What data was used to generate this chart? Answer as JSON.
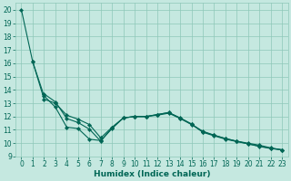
{
  "xlabel": "Humidex (Indice chaleur)",
  "ylabel": "",
  "bg_color": "#c5e8e0",
  "grid_color": "#8ec8b8",
  "line_color": "#006655",
  "xlim": [
    -0.5,
    23.5
  ],
  "ylim": [
    9,
    20.5
  ],
  "yticks": [
    9,
    10,
    11,
    12,
    13,
    14,
    15,
    16,
    17,
    18,
    19,
    20
  ],
  "xticks": [
    0,
    1,
    2,
    3,
    4,
    5,
    6,
    7,
    8,
    9,
    10,
    11,
    12,
    13,
    14,
    15,
    16,
    17,
    18,
    19,
    20,
    21,
    22,
    23
  ],
  "line1_x": [
    0,
    1,
    2,
    3,
    4,
    5,
    6,
    7,
    8,
    9,
    10,
    11,
    12,
    13,
    14,
    15,
    16,
    17,
    18,
    19,
    20,
    21,
    22,
    23
  ],
  "line1_y": [
    20.0,
    16.1,
    13.3,
    13.0,
    12.1,
    11.8,
    11.4,
    10.4,
    11.2,
    11.9,
    12.0,
    12.0,
    12.1,
    12.25,
    11.85,
    11.4,
    10.9,
    10.6,
    10.35,
    10.15,
    10.0,
    9.85,
    9.65,
    9.5
  ],
  "line2_x": [
    2,
    3,
    4,
    5,
    6,
    7,
    8,
    9,
    10,
    11,
    12,
    13,
    14,
    15,
    16,
    17,
    18,
    19,
    20,
    21,
    22,
    23
  ],
  "line2_y": [
    13.7,
    13.1,
    11.85,
    11.55,
    11.05,
    10.15,
    11.15,
    11.9,
    12.0,
    12.0,
    12.15,
    12.3,
    11.9,
    11.45,
    10.85,
    10.6,
    10.35,
    10.15,
    9.95,
    9.75,
    9.6,
    9.5
  ],
  "line3_x": [
    1,
    2,
    3,
    4,
    5,
    6,
    7,
    8,
    9,
    10,
    11,
    12,
    13,
    14,
    15,
    16,
    17,
    18,
    19,
    20,
    21,
    22,
    23
  ],
  "line3_y": [
    16.1,
    13.55,
    12.7,
    11.2,
    11.1,
    10.3,
    10.2,
    11.1,
    11.9,
    12.0,
    12.0,
    12.15,
    12.3,
    11.88,
    11.42,
    10.82,
    10.55,
    10.3,
    10.12,
    9.95,
    9.78,
    9.62,
    9.5
  ],
  "tick_fontsize": 5.5,
  "xlabel_fontsize": 6.5
}
